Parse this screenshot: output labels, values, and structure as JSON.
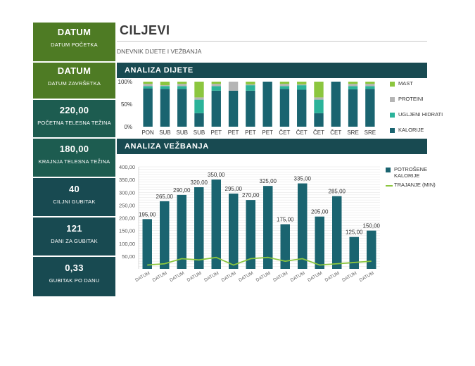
{
  "sidebar": [
    {
      "value": "DATUM",
      "label": "DATUM POČETKA",
      "style": "green"
    },
    {
      "value": "DATUM",
      "label": "DATUM ZAVRŠETKA",
      "style": "green"
    },
    {
      "value": "220,00",
      "label": "POČETNA TELESNA TEŽINA",
      "style": "teal-a"
    },
    {
      "value": "180,00",
      "label": "KRAJNJA TELESNA TEŽINA",
      "style": "teal-a"
    },
    {
      "value": "40",
      "label": "CILJNI GUBITAK",
      "style": "teal-b"
    },
    {
      "value": "121",
      "label": "DANI ZA GUBITAK",
      "style": "teal-b"
    },
    {
      "value": "0,33",
      "label": "GUBITAK PO DANU",
      "style": "teal-b"
    }
  ],
  "header": {
    "title": "CILJEVI",
    "subtitle": "DNEVNIK DIJETE I VEŽBANJA"
  },
  "sections": {
    "diet": "ANALIZA DIJETE",
    "exercise": "ANALIZA VEŽBANJA"
  },
  "colors": {
    "kalorije": "#1a6470",
    "ugljeni": "#2bb39a",
    "proteini": "#b5b5b5",
    "mast": "#8cc63f",
    "potroseneBar": "#1a6470",
    "trajanjeLine": "#8cc63f"
  },
  "chart_data": [
    {
      "type": "bar",
      "stacked": "percent",
      "categories": [
        "PON",
        "SUB",
        "SUB",
        "SUB",
        "PET",
        "PET",
        "PET",
        "PET",
        "ČET",
        "ČET",
        "ČET",
        "ČET",
        "SRE",
        "SRE"
      ],
      "yticks": [
        "0%",
        "50%",
        "100%"
      ],
      "ylim": [
        0,
        100
      ],
      "series": [
        {
          "name": "KALORIJE",
          "key": "kalorije",
          "values": [
            85,
            84,
            84,
            30,
            80,
            80,
            80,
            100,
            84,
            82,
            30,
            100,
            83,
            84
          ]
        },
        {
          "name": "UGLJENI HIDRATI",
          "key": "ugljeni",
          "values": [
            5,
            6,
            6,
            30,
            10,
            0,
            12,
            0,
            6,
            10,
            30,
            0,
            7,
            6
          ]
        },
        {
          "name": "PROTEINI",
          "key": "proteini",
          "values": [
            5,
            2,
            5,
            5,
            5,
            20,
            2,
            0,
            5,
            2,
            5,
            0,
            5,
            5
          ]
        },
        {
          "name": "MAST",
          "key": "mast",
          "values": [
            5,
            8,
            5,
            35,
            5,
            0,
            6,
            0,
            5,
            6,
            35,
            0,
            5,
            5
          ]
        }
      ],
      "legend": [
        "MAST",
        "PROTEINI",
        "UGLJENI HIDRATI",
        "KALORIJE"
      ],
      "legend_position": "right"
    },
    {
      "type": "bar",
      "categories": [
        "DATUM",
        "DATUM",
        "DATUM",
        "DATUM",
        "DATUM",
        "DATUM",
        "DATUM",
        "DATUM",
        "DATUM",
        "DATUM",
        "DATUM",
        "DATUM",
        "DATUM",
        "DATUM"
      ],
      "ylim": [
        0,
        400
      ],
      "yticks": [
        "50,00",
        "100,00",
        "150,00",
        "200,00",
        "250,00",
        "300,00",
        "350,00",
        "400,00"
      ],
      "series": [
        {
          "name": "POTROŠENE KALORIJE",
          "type": "bar",
          "values": [
            195,
            265,
            290,
            320,
            350,
            295,
            270,
            325,
            175,
            335,
            205,
            285,
            125,
            150
          ],
          "labels": [
            "195,00",
            "265,00",
            "290,00",
            "320,00",
            "350,00",
            "295,00",
            "270,00",
            "325,00",
            "175,00",
            "335,00",
            "205,00",
            "285,00",
            "125,00",
            "150,00"
          ]
        },
        {
          "name": "TRAJANJE (MIN)",
          "type": "line",
          "values": [
            15,
            20,
            40,
            35,
            45,
            15,
            40,
            45,
            30,
            40,
            15,
            20,
            25,
            30
          ]
        }
      ],
      "legend": [
        "POTROŠENE KALORIJE",
        "TRAJANJE (MIN)"
      ],
      "legend_position": "right",
      "grid": true
    }
  ]
}
